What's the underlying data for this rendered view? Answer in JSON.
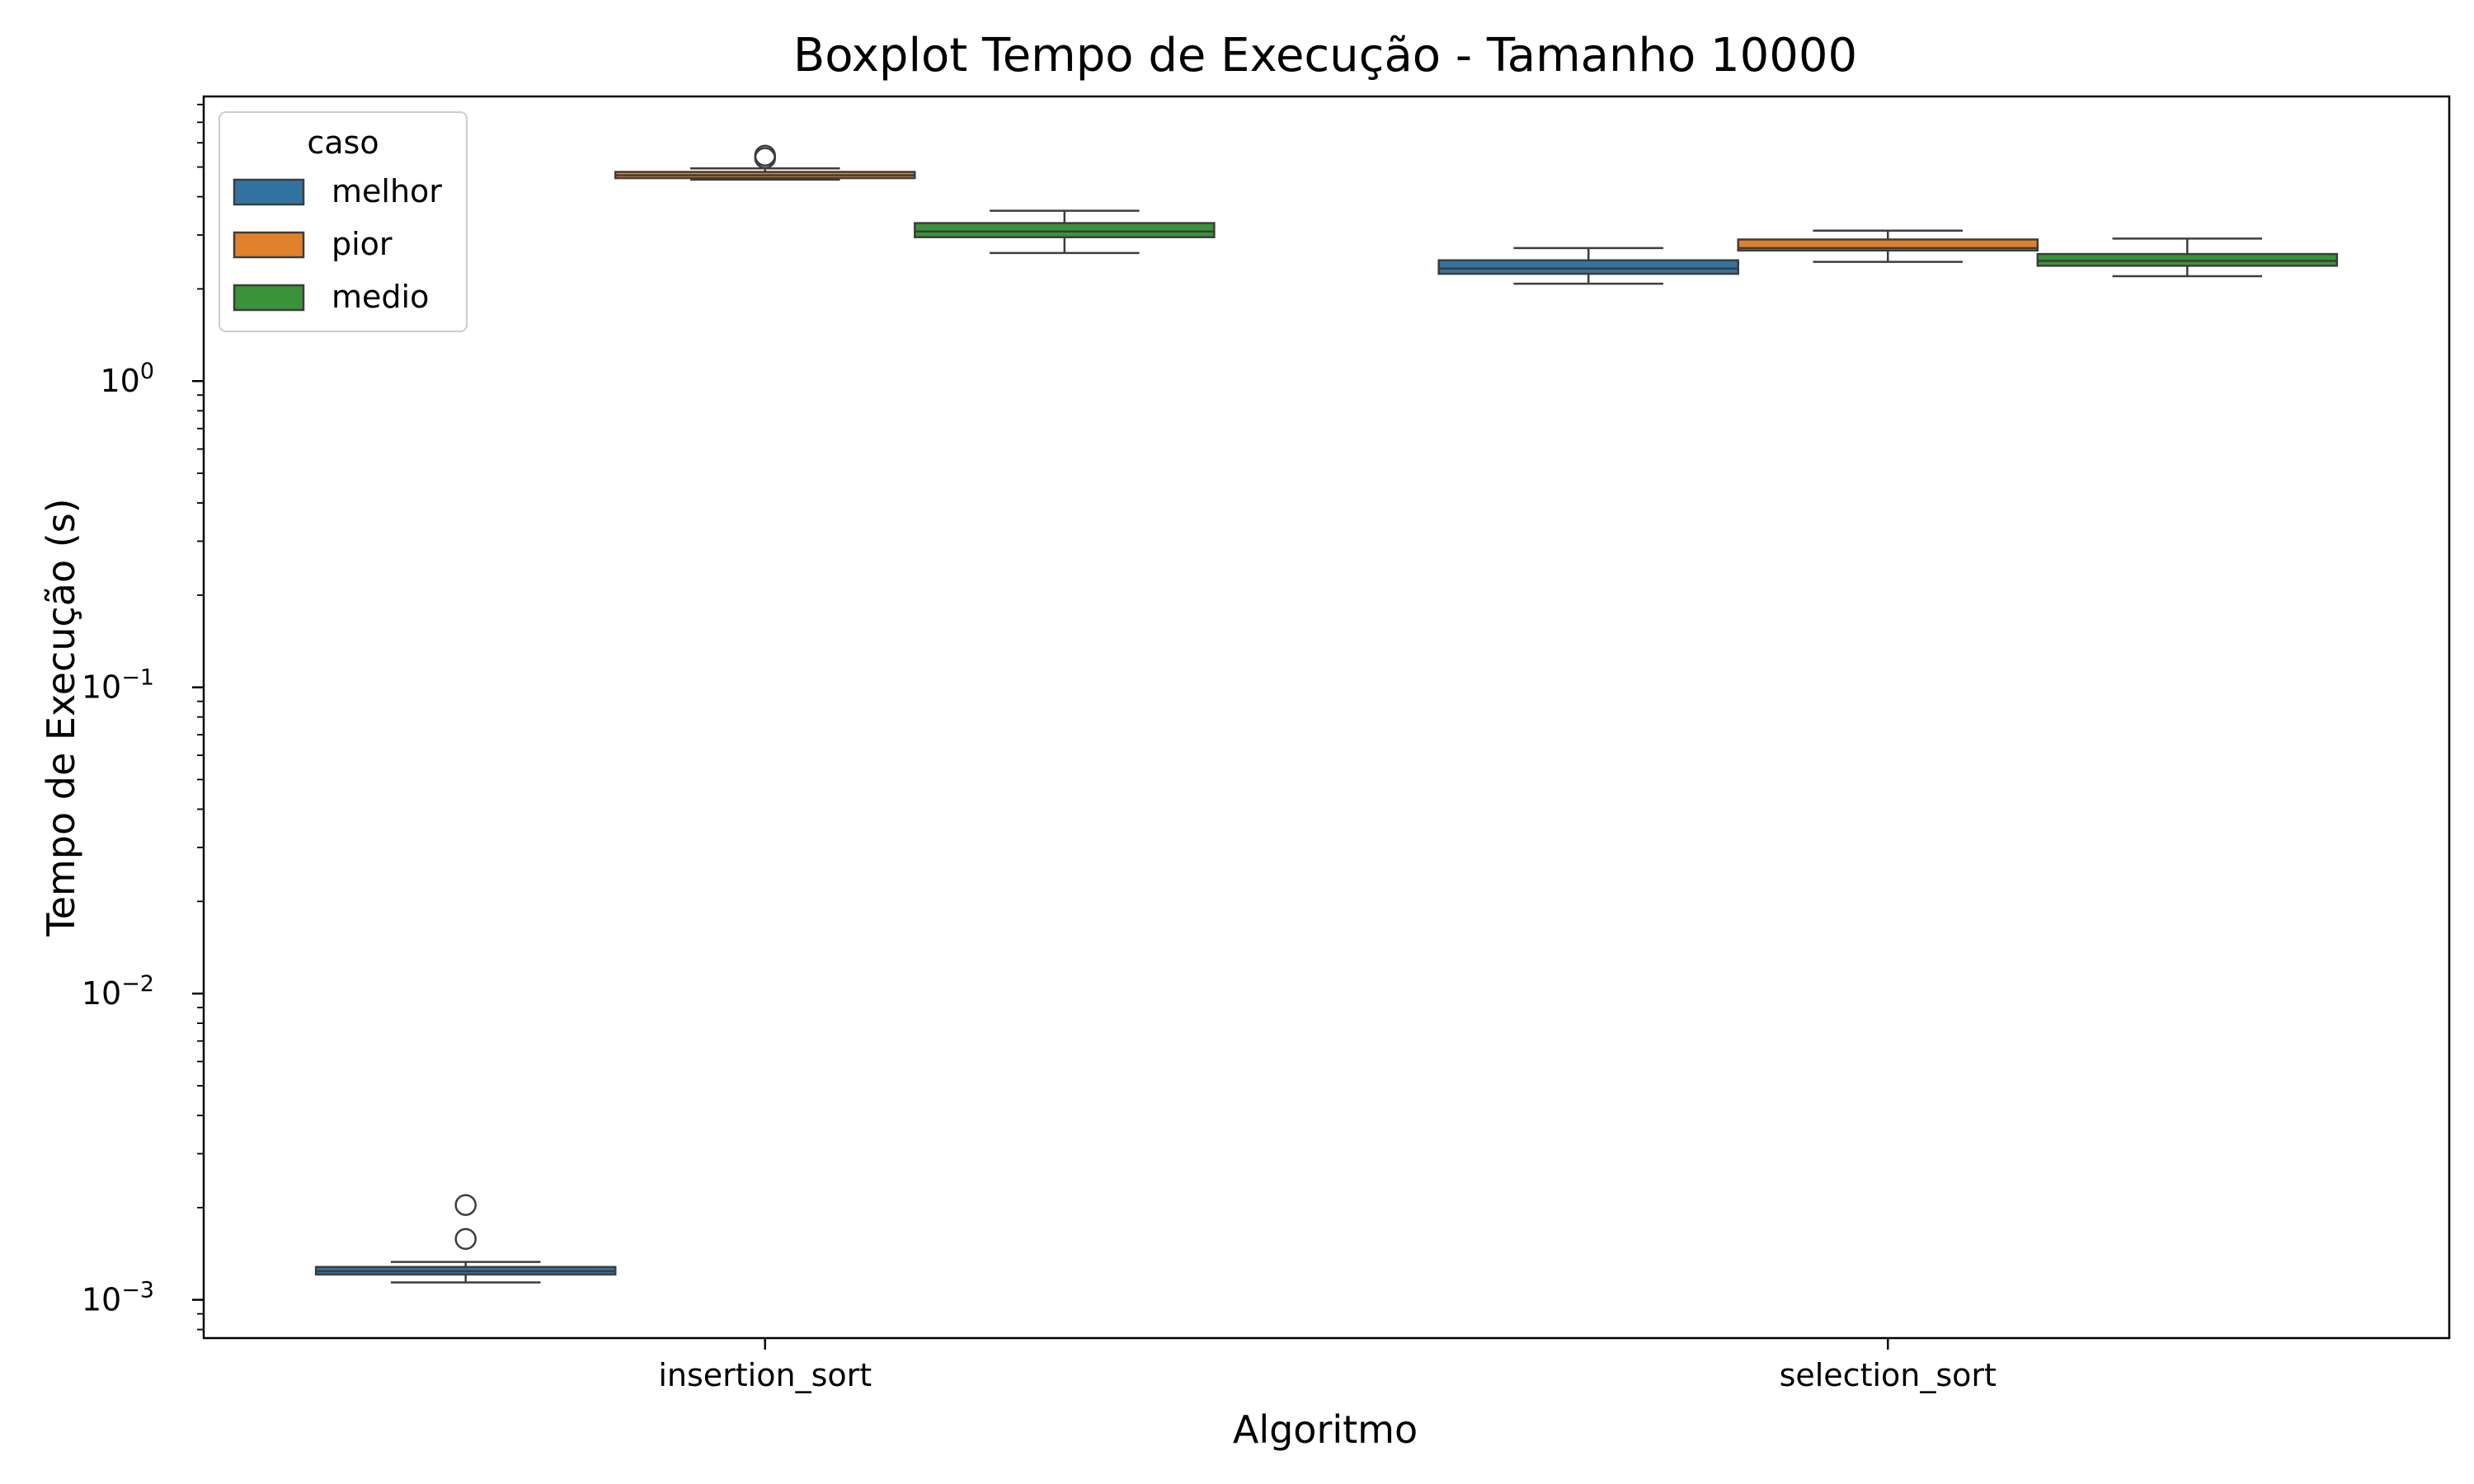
{
  "chart_data": {
    "type": "boxplot",
    "title": "Boxplot Tempo de Execução - Tamanho 10000",
    "xlabel": "Algoritmo",
    "ylabel": "Tempo de Execução (s)",
    "yscale": "log",
    "ylim": [
      0.00075,
      8.5
    ],
    "y_ticks": [
      {
        "value": 1,
        "base": "10",
        "exp": "0"
      },
      {
        "value": 0.1,
        "base": "10",
        "exp": "−1"
      },
      {
        "value": 0.01,
        "base": "10",
        "exp": "−2"
      },
      {
        "value": 0.001,
        "base": "10",
        "exp": "−3"
      }
    ],
    "categories": [
      "insertion_sort",
      "selection_sort"
    ],
    "grid": false,
    "legend": {
      "title": "caso",
      "placement": "top-left",
      "entries": [
        {
          "name": "melhor",
          "color": "#3274a1"
        },
        {
          "name": "pior",
          "color": "#e1812c"
        },
        {
          "name": "medio",
          "color": "#3a923a"
        }
      ]
    },
    "series": [
      {
        "name": "melhor",
        "color": "#3274a1",
        "boxes": [
          {
            "category": "insertion_sort",
            "whisker_low": 0.00114,
            "q1": 0.00121,
            "median": 0.00124,
            "q3": 0.00128,
            "whisker_high": 0.00133,
            "outliers": [
              0.00158,
              0.00204
            ]
          },
          {
            "category": "selection_sort",
            "whisker_low": 2.08,
            "q1": 2.24,
            "median": 2.33,
            "q3": 2.48,
            "whisker_high": 2.72,
            "outliers": []
          }
        ]
      },
      {
        "name": "pior",
        "color": "#e1812c",
        "boxes": [
          {
            "category": "insertion_sort",
            "whisker_low": 4.55,
            "q1": 4.6,
            "median": 4.7,
            "q3": 4.82,
            "whisker_high": 4.95,
            "outliers": [
              5.35,
              5.45
            ]
          },
          {
            "category": "selection_sort",
            "whisker_low": 2.45,
            "q1": 2.67,
            "median": 2.72,
            "q3": 2.9,
            "whisker_high": 3.1,
            "outliers": []
          }
        ]
      },
      {
        "name": "medio",
        "color": "#3a923a",
        "boxes": [
          {
            "category": "insertion_sort",
            "whisker_low": 2.62,
            "q1": 2.95,
            "median": 3.08,
            "q3": 3.28,
            "whisker_high": 3.6,
            "outliers": []
          },
          {
            "category": "selection_sort",
            "whisker_low": 2.2,
            "q1": 2.38,
            "median": 2.47,
            "q3": 2.6,
            "whisker_high": 2.92,
            "outliers": []
          }
        ]
      }
    ]
  }
}
